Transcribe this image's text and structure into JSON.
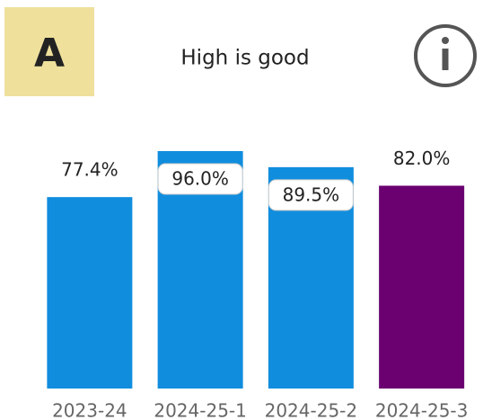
{
  "badge": "A",
  "chart_data": {
    "type": "bar",
    "title": "High is good",
    "categories": [
      "2023-24",
      "2024-25-1",
      "2024-25-2",
      "2024-25-3"
    ],
    "values": [
      77.4,
      96.0,
      89.5,
      82.0
    ],
    "value_labels": [
      "77.4%",
      "96.0%",
      "89.5%",
      "82.0%"
    ],
    "colors": [
      "#118dde",
      "#118dde",
      "#118dde",
      "#6b0070"
    ],
    "ylim": [
      0,
      100
    ]
  }
}
